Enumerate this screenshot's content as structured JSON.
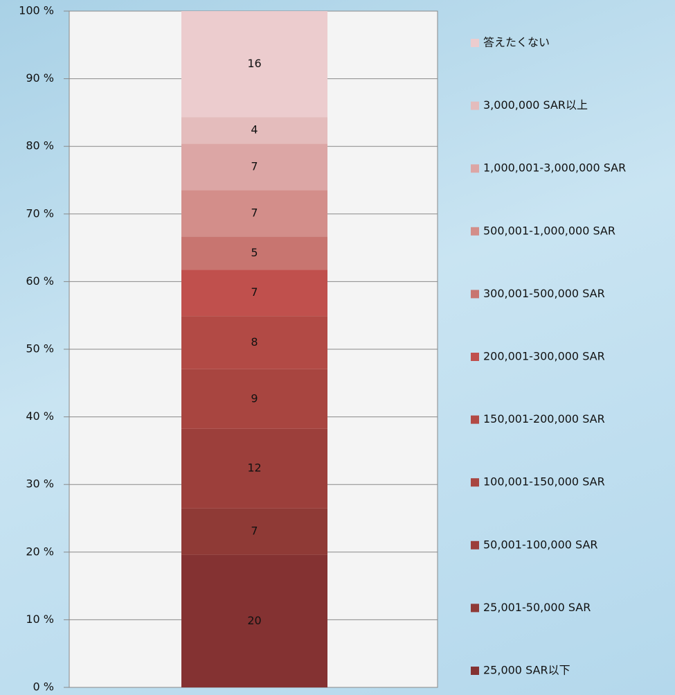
{
  "chart_data": {
    "type": "stacked_bar",
    "stacking": "percent",
    "ylim": [
      0,
      100
    ],
    "yticks": [
      {
        "value": 0,
        "label": "0 %"
      },
      {
        "value": 10,
        "label": "10 %"
      },
      {
        "value": 20,
        "label": "20 %"
      },
      {
        "value": 30,
        "label": "30 %"
      },
      {
        "value": 40,
        "label": "40 %"
      },
      {
        "value": 50,
        "label": "50 %"
      },
      {
        "value": 60,
        "label": "60 %"
      },
      {
        "value": 70,
        "label": "70 %"
      },
      {
        "value": 80,
        "label": "80 %"
      },
      {
        "value": 90,
        "label": "90 %"
      },
      {
        "value": 100,
        "label": "100 %"
      }
    ],
    "grid": true,
    "legend": "right",
    "series": [
      {
        "name": "25,000 SAR以下",
        "color": "#843232",
        "values": [
          20
        ]
      },
      {
        "name": "25,001-50,000 SAR",
        "color": "#8f3a36",
        "values": [
          7
        ]
      },
      {
        "name": "50,001-100,000 SAR",
        "color": "#9c3f3b",
        "values": [
          12
        ]
      },
      {
        "name": "100,001-150,000 SAR",
        "color": "#a84540",
        "values": [
          9
        ]
      },
      {
        "name": "150,001-200,000 SAR",
        "color": "#b24a45",
        "values": [
          8
        ]
      },
      {
        "name": "200,001-300,000 SAR",
        "color": "#c0504d",
        "values": [
          7
        ]
      },
      {
        "name": "300,001-500,000 SAR",
        "color": "#c87570",
        "values": [
          5
        ]
      },
      {
        "name": "500,001-1,000,000 SAR",
        "color": "#d38e8a",
        "values": [
          7
        ]
      },
      {
        "name": "1,000,001-3,000,000 SAR",
        "color": "#dca6a5",
        "values": [
          7
        ]
      },
      {
        "name": "3,000,000 SAR以上",
        "color": "#e4bcbc",
        "values": [
          4
        ]
      },
      {
        "name": "答えたくない",
        "color": "#ecccce",
        "values": [
          16
        ]
      }
    ]
  }
}
